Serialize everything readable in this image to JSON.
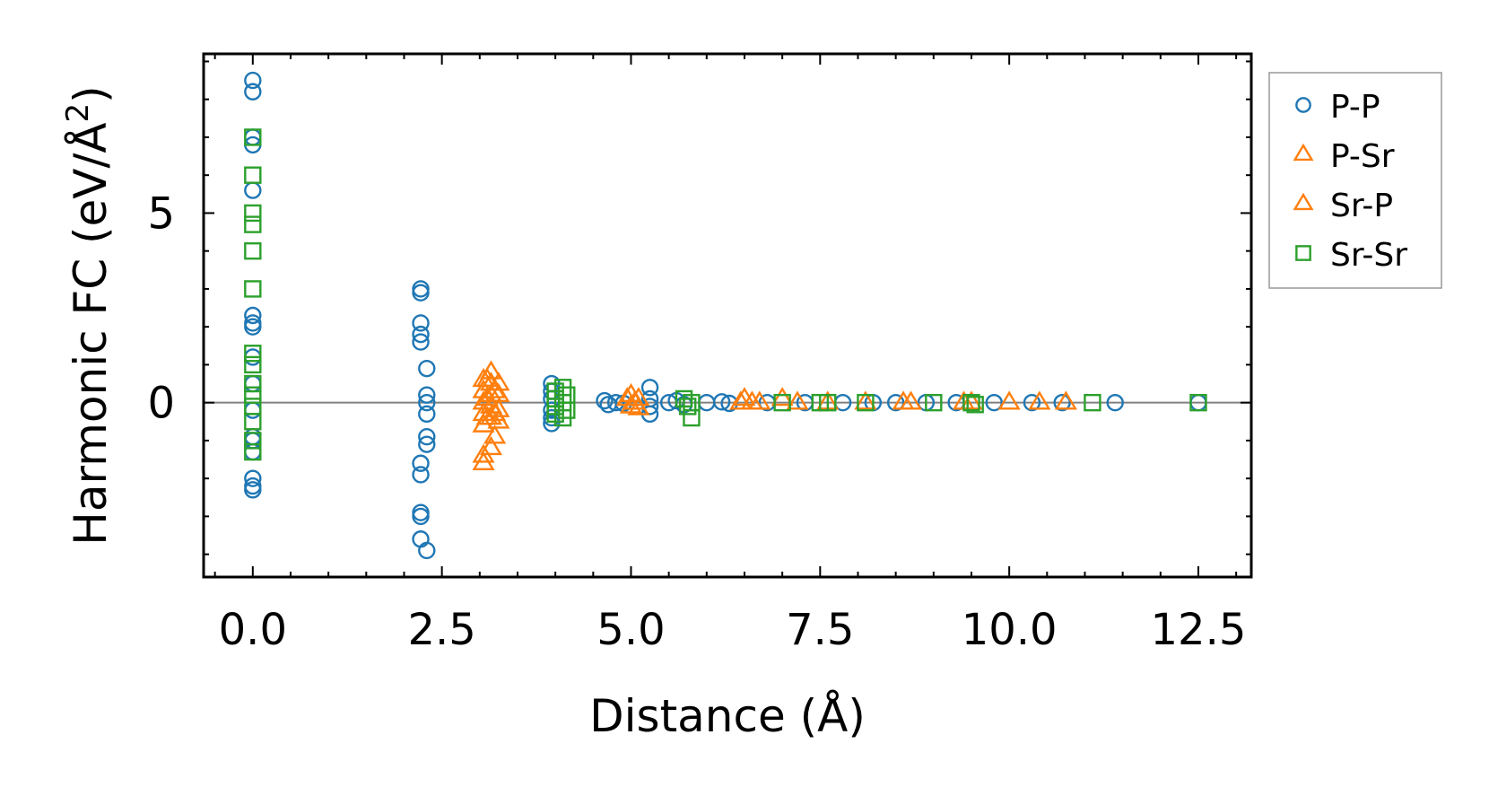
{
  "chart_data": {
    "type": "scatter",
    "xlabel": "Distance (Å)",
    "ylabel_main": "Harmonic FC (eV/Å",
    "ylabel_sup": "2",
    "ylabel_close": ")",
    "xlim": [
      -0.65,
      13.2
    ],
    "ylim": [
      -4.6,
      9.2
    ],
    "x_ticks": [
      0.0,
      2.5,
      5.0,
      7.5,
      10.0,
      12.5
    ],
    "x_tick_labels": [
      "0.0",
      "2.5",
      "5.0",
      "7.5",
      "10.0",
      "12.5"
    ],
    "y_ticks": [
      0,
      5
    ],
    "y_tick_labels": [
      "0",
      "5"
    ],
    "reference_line_y": 0,
    "legend_position": "outside-right",
    "series": [
      {
        "name": "P-P",
        "marker": "circle",
        "color": "#1f77b4",
        "points": [
          [
            0,
            8.5
          ],
          [
            0,
            8.2
          ],
          [
            0,
            7.0
          ],
          [
            0,
            6.8
          ],
          [
            0,
            5.6
          ],
          [
            0,
            2.3
          ],
          [
            0,
            2.1
          ],
          [
            0,
            2.0
          ],
          [
            0,
            1.2
          ],
          [
            0,
            0.5
          ],
          [
            0,
            -0.2
          ],
          [
            0,
            -0.9
          ],
          [
            0,
            -1.0
          ],
          [
            0,
            -1.3
          ],
          [
            0,
            -2.0
          ],
          [
            0,
            -2.2
          ],
          [
            0,
            -2.3
          ],
          [
            2.22,
            3.0
          ],
          [
            2.22,
            2.9
          ],
          [
            2.22,
            2.1
          ],
          [
            2.22,
            1.8
          ],
          [
            2.22,
            1.6
          ],
          [
            2.3,
            0.9
          ],
          [
            2.3,
            0.2
          ],
          [
            2.3,
            0.0
          ],
          [
            2.3,
            -0.3
          ],
          [
            2.3,
            -0.9
          ],
          [
            2.3,
            -1.1
          ],
          [
            2.22,
            -1.6
          ],
          [
            2.22,
            -1.9
          ],
          [
            2.22,
            -2.9
          ],
          [
            2.22,
            -3.0
          ],
          [
            2.22,
            -3.6
          ],
          [
            2.3,
            -3.9
          ],
          [
            3.95,
            0.5
          ],
          [
            3.95,
            0.3
          ],
          [
            3.95,
            0.1
          ],
          [
            3.95,
            -0.2
          ],
          [
            3.95,
            -0.4
          ],
          [
            3.95,
            -0.55
          ],
          [
            4.65,
            0.05
          ],
          [
            4.7,
            -0.05
          ],
          [
            4.8,
            0.0
          ],
          [
            4.9,
            -0.02
          ],
          [
            5.25,
            0.4
          ],
          [
            5.25,
            0.1
          ],
          [
            5.25,
            -0.1
          ],
          [
            5.25,
            -0.3
          ],
          [
            5.5,
            0.0
          ],
          [
            5.6,
            0.05
          ],
          [
            5.7,
            -0.05
          ],
          [
            6.0,
            0.0
          ],
          [
            6.2,
            0.02
          ],
          [
            6.3,
            -0.02
          ],
          [
            6.8,
            0.0
          ],
          [
            7.3,
            0.0
          ],
          [
            7.8,
            0.0
          ],
          [
            8.2,
            0.0
          ],
          [
            8.5,
            0.0
          ],
          [
            8.9,
            0.0
          ],
          [
            9.3,
            0.0
          ],
          [
            9.8,
            0.0
          ],
          [
            10.3,
            0.0
          ],
          [
            10.7,
            0.0
          ],
          [
            11.4,
            0.0
          ],
          [
            12.5,
            0.0
          ]
        ]
      },
      {
        "name": "P-Sr",
        "marker": "triangle",
        "color": "#ff7f0e",
        "points": [
          [
            3.05,
            0.6
          ],
          [
            3.05,
            0.3
          ],
          [
            3.05,
            0.0
          ],
          [
            3.05,
            -0.3
          ],
          [
            3.05,
            -0.6
          ],
          [
            3.05,
            -1.4
          ],
          [
            3.05,
            -1.6
          ],
          [
            3.15,
            0.8
          ],
          [
            3.15,
            0.5
          ],
          [
            3.15,
            0.2
          ],
          [
            3.15,
            -0.1
          ],
          [
            3.15,
            -0.4
          ],
          [
            3.15,
            -1.2
          ],
          [
            3.25,
            0.5
          ],
          [
            3.25,
            0.2
          ],
          [
            3.25,
            -0.2
          ],
          [
            3.25,
            -0.5
          ],
          [
            5.0,
            0.2
          ],
          [
            5.0,
            -0.1
          ],
          [
            5.1,
            0.1
          ],
          [
            5.1,
            -0.15
          ],
          [
            6.5,
            0.1
          ],
          [
            6.6,
            0.0
          ],
          [
            7.0,
            0.1
          ],
          [
            8.6,
            0.0
          ],
          [
            9.5,
            0.0
          ],
          [
            10.0,
            0.0
          ]
        ]
      },
      {
        "name": "Sr-P",
        "marker": "triangle",
        "color": "#ff7f0e",
        "points": [
          [
            3.1,
            0.6
          ],
          [
            3.1,
            0.1
          ],
          [
            3.1,
            -0.4
          ],
          [
            3.2,
            0.3
          ],
          [
            3.2,
            -0.3
          ],
          [
            3.2,
            -0.9
          ],
          [
            4.95,
            0.1
          ],
          [
            5.05,
            0.0
          ],
          [
            6.45,
            0.0
          ],
          [
            6.7,
            0.0
          ],
          [
            7.2,
            0.0
          ],
          [
            7.6,
            0.0
          ],
          [
            8.1,
            0.0
          ],
          [
            8.7,
            0.0
          ],
          [
            9.4,
            0.0
          ],
          [
            10.4,
            0.0
          ],
          [
            10.75,
            0.0
          ]
        ]
      },
      {
        "name": "Sr-Sr",
        "marker": "square",
        "color": "#2ca02c",
        "points": [
          [
            0,
            7.0
          ],
          [
            0,
            6.0
          ],
          [
            0,
            5.0
          ],
          [
            0,
            4.7
          ],
          [
            0,
            4.0
          ],
          [
            0,
            3.0
          ],
          [
            0,
            1.3
          ],
          [
            0,
            1.0
          ],
          [
            0,
            0.5
          ],
          [
            0,
            0.2
          ],
          [
            0,
            -0.1
          ],
          [
            0,
            -0.5
          ],
          [
            0,
            -1.0
          ],
          [
            0,
            -1.3
          ],
          [
            4.0,
            0.3
          ],
          [
            4.0,
            0.1
          ],
          [
            4.0,
            -0.1
          ],
          [
            4.0,
            -0.3
          ],
          [
            4.1,
            0.4
          ],
          [
            4.1,
            0.0
          ],
          [
            4.1,
            -0.4
          ],
          [
            4.15,
            0.2
          ],
          [
            4.15,
            -0.2
          ],
          [
            5.7,
            0.1
          ],
          [
            5.75,
            -0.1
          ],
          [
            5.8,
            0.0
          ],
          [
            5.8,
            -0.4
          ],
          [
            7.0,
            0.0
          ],
          [
            7.5,
            0.0
          ],
          [
            7.6,
            0.0
          ],
          [
            8.1,
            0.0
          ],
          [
            9.0,
            0.0
          ],
          [
            9.5,
            0.0
          ],
          [
            9.55,
            -0.05
          ],
          [
            11.1,
            0.0
          ],
          [
            12.5,
            0.0
          ]
        ]
      }
    ]
  }
}
